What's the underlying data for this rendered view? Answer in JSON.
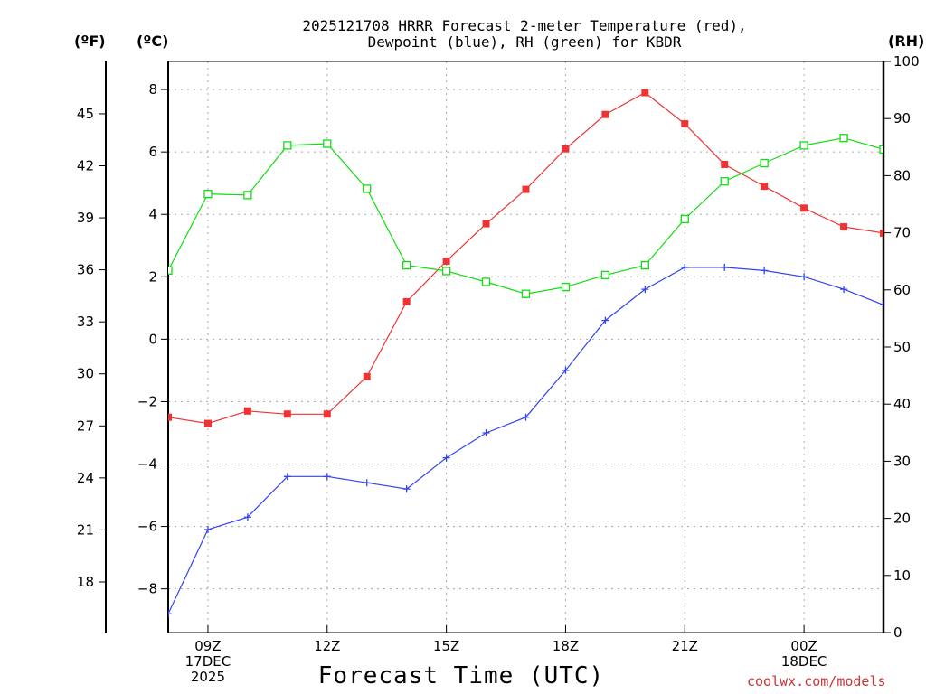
{
  "title": {
    "line1": "2025121708 HRRR Forecast 2-meter Temperature (red),",
    "line2": "Dewpoint (blue), RH (green) for KBDR"
  },
  "units": {
    "fahrenheit": "(ºF)",
    "celsius": "(ºC)",
    "rh": "(RH)"
  },
  "xlabel": "Forecast Time (UTC)",
  "credit": "coolwx.com/models",
  "colors": {
    "temperature": "#ee3333",
    "dewpoint": "#3344ee",
    "rh": "#11dd11",
    "grid": "#aaaaaa",
    "axis": "#000000"
  },
  "chart_data": {
    "type": "line",
    "title": "2025121708 HRRR Forecast 2-meter Temperature (red), Dewpoint (blue), RH (green) for KBDR",
    "xlabel": "Forecast Time (UTC)",
    "x_hours_since_08Z": [
      0,
      1,
      2,
      3,
      4,
      5,
      6,
      7,
      8,
      9,
      10,
      11,
      12,
      13,
      14,
      15,
      16,
      17,
      18
    ],
    "x_ticks": [
      {
        "hour": 1,
        "label": "09Z",
        "sub1": "17DEC",
        "sub2": "2025"
      },
      {
        "hour": 4,
        "label": "12Z",
        "sub1": "",
        "sub2": ""
      },
      {
        "hour": 7,
        "label": "15Z",
        "sub1": "",
        "sub2": ""
      },
      {
        "hour": 10,
        "label": "18Z",
        "sub1": "",
        "sub2": ""
      },
      {
        "hour": 13,
        "label": "21Z",
        "sub1": "",
        "sub2": ""
      },
      {
        "hour": 16,
        "label": "00Z",
        "sub1": "18DEC",
        "sub2": ""
      }
    ],
    "xlim": [
      0,
      18
    ],
    "y_celsius": {
      "ticks": [
        8,
        6,
        4,
        2,
        0,
        -2,
        -4,
        -6,
        -8
      ],
      "tick_labels": [
        "8",
        "6",
        "4",
        "2",
        "0",
        "−2",
        "−4",
        "−6",
        "−8"
      ],
      "ylim": [
        -9.4,
        8.9
      ]
    },
    "y_fahrenheit": {
      "ticks": [
        45,
        42,
        39,
        36,
        33,
        30,
        27,
        24,
        21,
        18
      ],
      "tick_labels": [
        "45",
        "42",
        "39",
        "36",
        "33",
        "30",
        "27",
        "24",
        "21",
        "18"
      ]
    },
    "y_rh": {
      "ticks": [
        100,
        90,
        80,
        70,
        60,
        50,
        40,
        30,
        20,
        10,
        0
      ],
      "tick_labels": [
        "100",
        "90",
        "80",
        "70",
        "60",
        "50",
        "40",
        "30",
        "20",
        "10",
        "0"
      ],
      "ylim": [
        0,
        100
      ]
    },
    "grid": true,
    "series": [
      {
        "name": "Temperature",
        "axis": "celsius",
        "marker": "filled-square",
        "values": [
          -2.5,
          -2.7,
          -2.3,
          -2.4,
          -2.4,
          -1.2,
          1.2,
          2.5,
          3.7,
          4.8,
          6.1,
          7.2,
          7.9,
          6.9,
          5.6,
          4.9,
          4.2,
          3.6,
          3.4
        ]
      },
      {
        "name": "Dewpoint",
        "axis": "celsius",
        "marker": "plus",
        "values": [
          -8.8,
          -6.1,
          -5.7,
          -4.4,
          -4.4,
          -4.6,
          -4.8,
          -3.8,
          -3.0,
          -2.5,
          -1.0,
          0.6,
          1.6,
          2.3,
          2.3,
          2.2,
          2.0,
          1.6,
          1.1
        ]
      },
      {
        "name": "RH",
        "axis": "rh",
        "marker": "open-square",
        "values": [
          63.4,
          76.8,
          76.6,
          85.3,
          85.6,
          77.7,
          64.3,
          63.3,
          61.4,
          59.3,
          60.5,
          62.6,
          64.3,
          72.4,
          79.0,
          82.2,
          85.3,
          86.6,
          84.6
        ]
      }
    ]
  }
}
